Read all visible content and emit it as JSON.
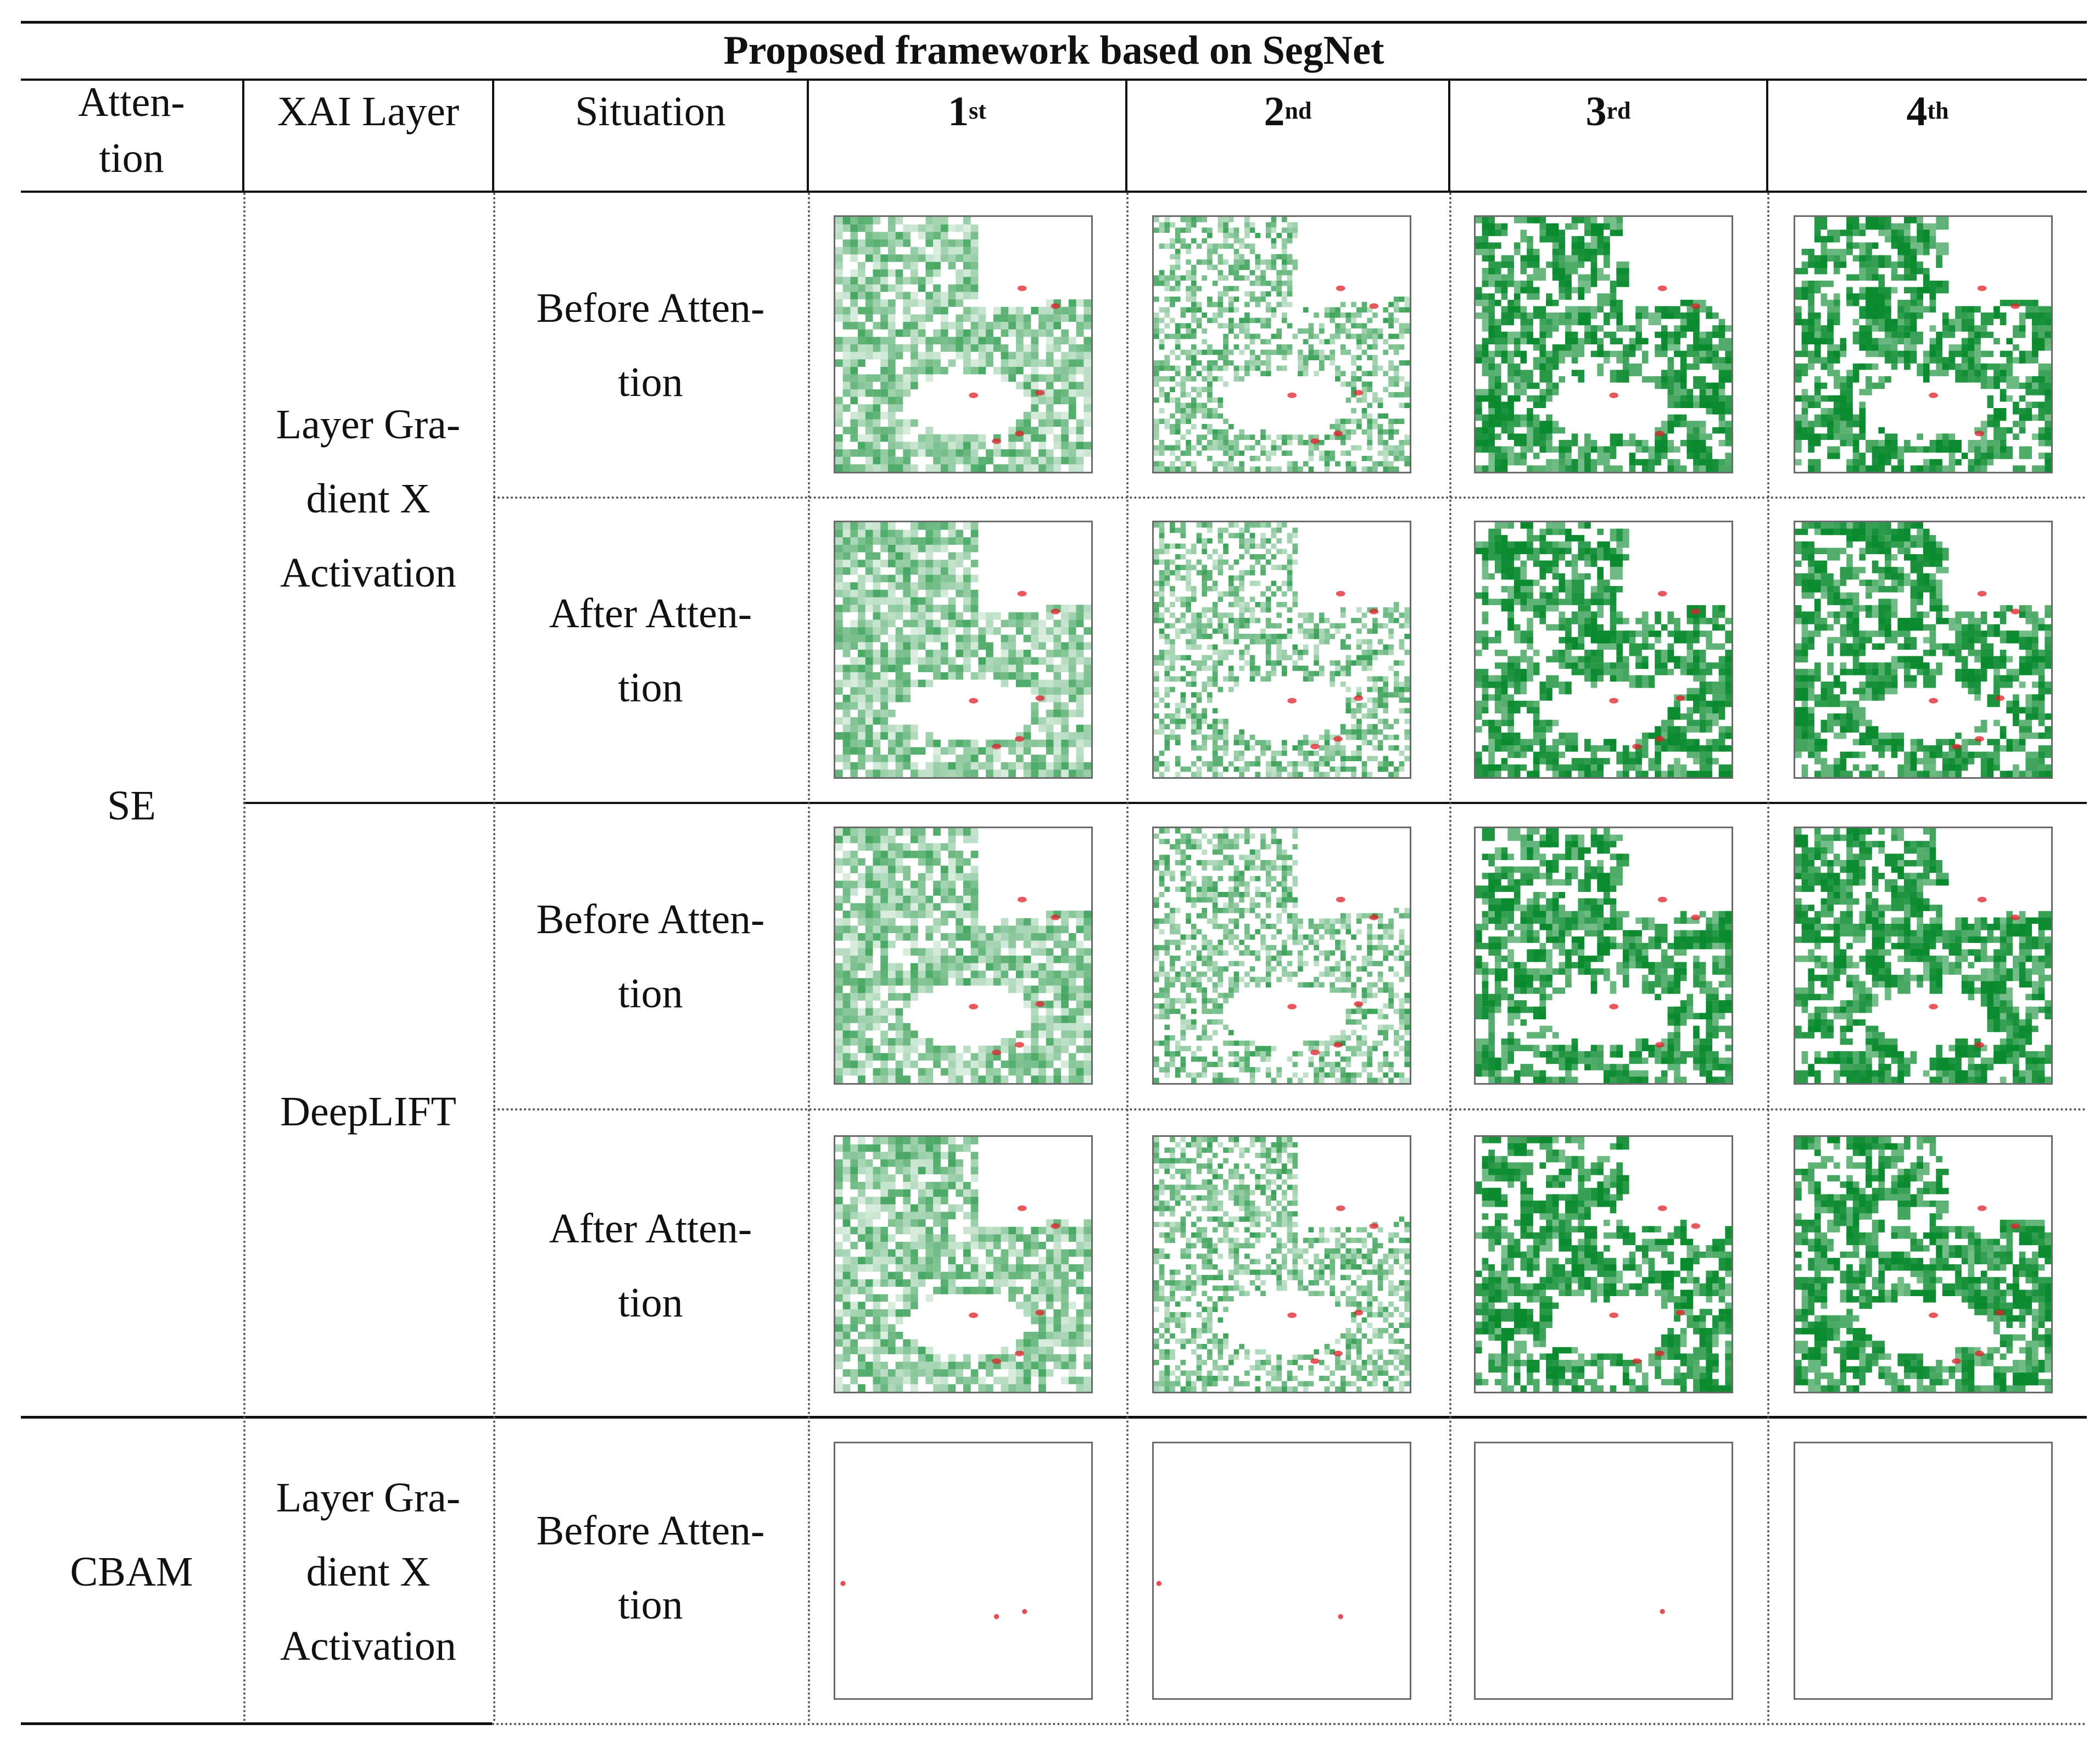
{
  "table": {
    "title": "Proposed framework based on SegNet",
    "headers": {
      "attention": "Atten-\ntion",
      "xai_layer": "XAI Layer",
      "situation": "Situation",
      "cols": [
        {
          "base": "1",
          "sup": "st"
        },
        {
          "base": "2",
          "sup": "nd"
        },
        {
          "base": "3",
          "sup": "rd"
        },
        {
          "base": "4",
          "sup": "th"
        }
      ]
    },
    "attention_groups": [
      {
        "name": "SE"
      },
      {
        "name": "CBAM"
      }
    ],
    "xai_layers": [
      {
        "name": "Layer Gra-\ndient X\nActivation"
      },
      {
        "name": "DeepLIFT"
      },
      {
        "name": "Layer Gra-\ndient X\nActivation"
      }
    ],
    "situations": [
      {
        "label": "Before Atten-\ntion"
      },
      {
        "label": "After Atten-\ntion"
      },
      {
        "label": "Before Atten-\ntion"
      },
      {
        "label": "After Atten-\ntion"
      },
      {
        "label": "Before Atten-\ntion"
      }
    ],
    "colors": {
      "positive": "#0a8a2e",
      "negative": "#e0202a",
      "rule": "#111111"
    }
  }
}
